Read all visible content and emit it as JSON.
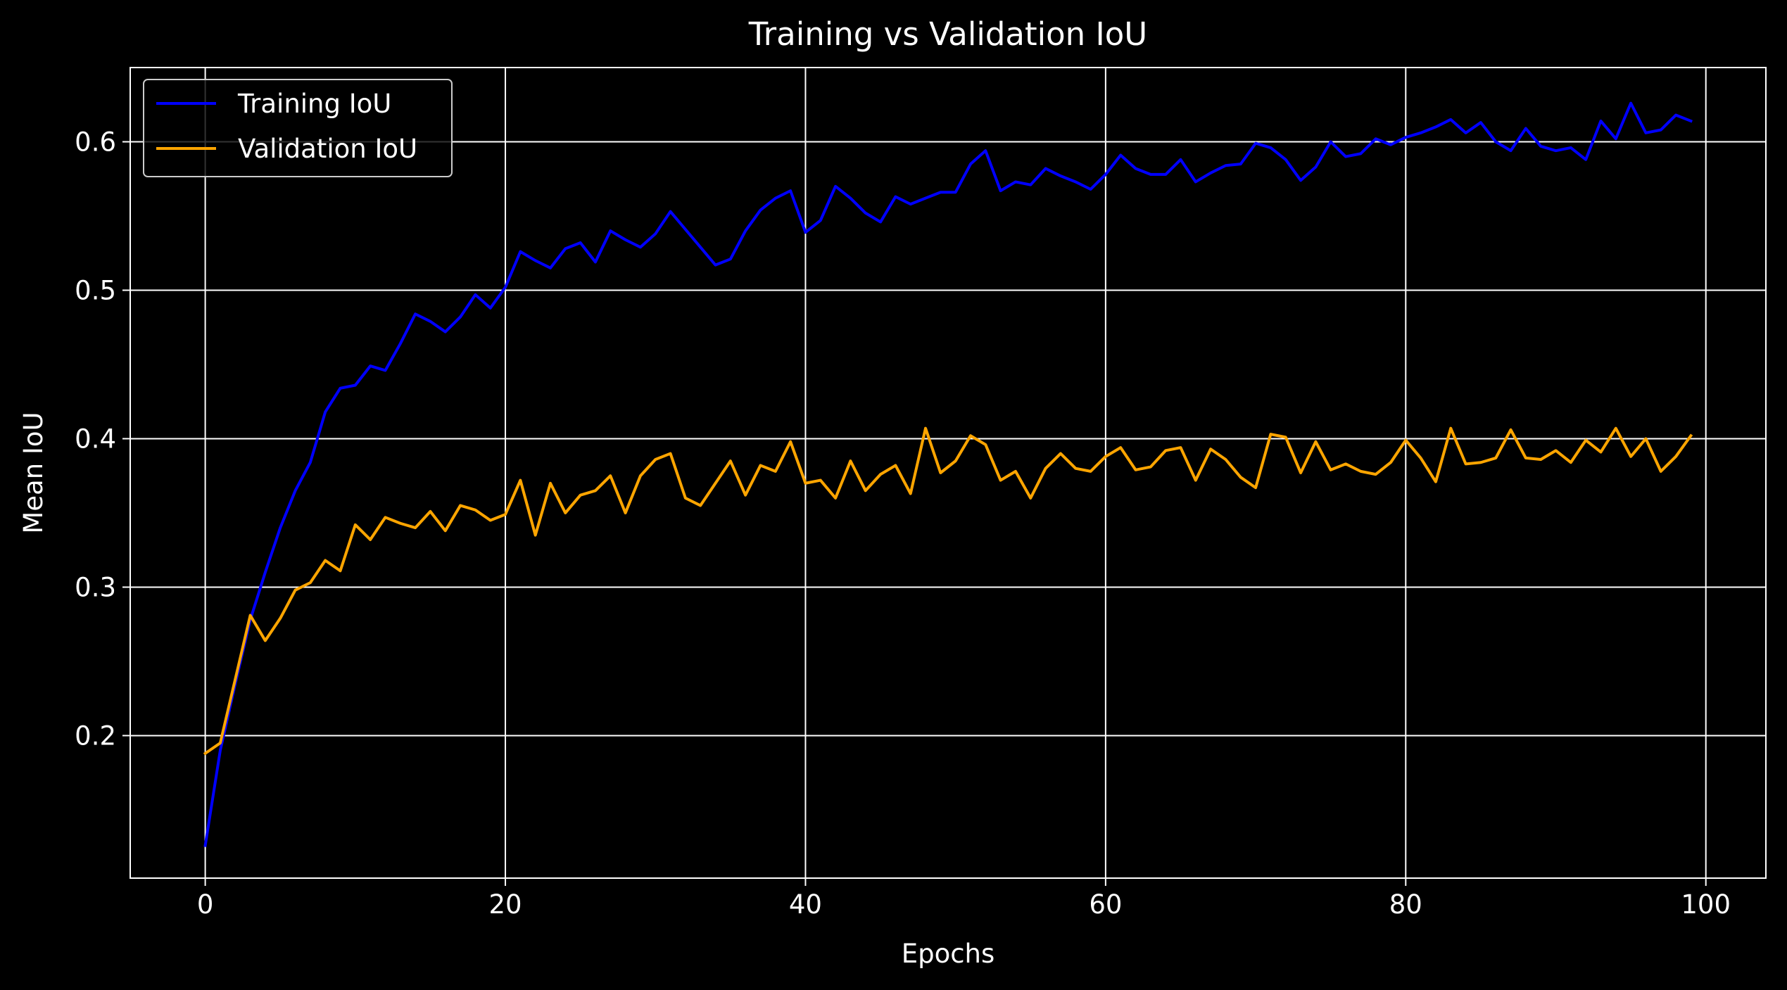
{
  "chart_data": {
    "type": "line",
    "title": "Training vs Validation IoU",
    "xlabel": "Epochs",
    "ylabel": "Mean IoU",
    "xlim": [
      -5,
      104
    ],
    "ylim": [
      0.104,
      0.65
    ],
    "xticks": [
      0,
      20,
      40,
      60,
      80,
      100
    ],
    "yticks": [
      0.2,
      0.3,
      0.4,
      0.5,
      0.6
    ],
    "xtick_labels": [
      "0",
      "20",
      "40",
      "60",
      "80",
      "100"
    ],
    "ytick_labels": [
      "0.2",
      "0.3",
      "0.4",
      "0.5",
      "0.6"
    ],
    "grid": true,
    "legend_position": "top-left",
    "colors": {
      "background": "#000000",
      "foreground": "#ffffff"
    },
    "series": [
      {
        "name": "Training IoU",
        "color": "#0000ff",
        "x": [
          0,
          1,
          2,
          3,
          4,
          5,
          6,
          7,
          8,
          9,
          10,
          11,
          12,
          13,
          14,
          15,
          16,
          17,
          18,
          19,
          20,
          21,
          22,
          23,
          24,
          25,
          26,
          27,
          28,
          29,
          30,
          31,
          32,
          33,
          34,
          35,
          36,
          37,
          38,
          39,
          40,
          41,
          42,
          43,
          44,
          45,
          46,
          47,
          48,
          49,
          50,
          51,
          52,
          53,
          54,
          55,
          56,
          57,
          58,
          59,
          60,
          61,
          62,
          63,
          64,
          65,
          66,
          67,
          68,
          69,
          70,
          71,
          72,
          73,
          74,
          75,
          76,
          77,
          78,
          79,
          80,
          81,
          82,
          83,
          84,
          85,
          86,
          87,
          88,
          89,
          90,
          91,
          92,
          93,
          94,
          95,
          96,
          97,
          98,
          99
        ],
        "values": [
          0.126,
          0.19,
          0.235,
          0.278,
          0.31,
          0.34,
          0.365,
          0.384,
          0.418,
          0.434,
          0.436,
          0.449,
          0.446,
          0.464,
          0.484,
          0.479,
          0.472,
          0.482,
          0.497,
          0.488,
          0.502,
          0.526,
          0.52,
          0.515,
          0.528,
          0.532,
          0.519,
          0.54,
          0.534,
          0.529,
          0.538,
          0.553,
          0.541,
          0.529,
          0.517,
          0.521,
          0.54,
          0.554,
          0.562,
          0.567,
          0.539,
          0.547,
          0.57,
          0.562,
          0.552,
          0.546,
          0.563,
          0.558,
          0.562,
          0.566,
          0.566,
          0.585,
          0.594,
          0.567,
          0.573,
          0.571,
          0.582,
          0.577,
          0.573,
          0.568,
          0.578,
          0.591,
          0.582,
          0.578,
          0.578,
          0.588,
          0.573,
          0.579,
          0.584,
          0.585,
          0.599,
          0.596,
          0.588,
          0.574,
          0.583,
          0.6,
          0.59,
          0.592,
          0.602,
          0.598,
          0.603,
          0.606,
          0.61,
          0.615,
          0.606,
          0.613,
          0.6,
          0.594,
          0.609,
          0.597,
          0.594,
          0.596,
          0.588,
          0.614,
          0.602,
          0.626,
          0.606,
          0.608,
          0.618,
          0.614
        ]
      },
      {
        "name": "Validation IoU",
        "color": "#ffa500",
        "x": [
          0,
          1,
          2,
          3,
          4,
          5,
          6,
          7,
          8,
          9,
          10,
          11,
          12,
          13,
          14,
          15,
          16,
          17,
          18,
          19,
          20,
          21,
          22,
          23,
          24,
          25,
          26,
          27,
          28,
          29,
          30,
          31,
          32,
          33,
          34,
          35,
          36,
          37,
          38,
          39,
          40,
          41,
          42,
          43,
          44,
          45,
          46,
          47,
          48,
          49,
          50,
          51,
          52,
          53,
          54,
          55,
          56,
          57,
          58,
          59,
          60,
          61,
          62,
          63,
          64,
          65,
          66,
          67,
          68,
          69,
          70,
          71,
          72,
          73,
          74,
          75,
          76,
          77,
          78,
          79,
          80,
          81,
          82,
          83,
          84,
          85,
          86,
          87,
          88,
          89,
          90,
          91,
          92,
          93,
          94,
          95,
          96,
          97,
          98,
          99
        ],
        "values": [
          0.188,
          0.195,
          0.238,
          0.281,
          0.264,
          0.279,
          0.298,
          0.303,
          0.318,
          0.311,
          0.342,
          0.332,
          0.347,
          0.343,
          0.34,
          0.351,
          0.338,
          0.355,
          0.352,
          0.345,
          0.349,
          0.372,
          0.335,
          0.37,
          0.35,
          0.362,
          0.365,
          0.375,
          0.35,
          0.375,
          0.386,
          0.39,
          0.36,
          0.355,
          0.37,
          0.385,
          0.362,
          0.382,
          0.378,
          0.398,
          0.37,
          0.372,
          0.36,
          0.385,
          0.365,
          0.376,
          0.382,
          0.363,
          0.407,
          0.377,
          0.385,
          0.402,
          0.396,
          0.372,
          0.378,
          0.36,
          0.38,
          0.39,
          0.38,
          0.378,
          0.388,
          0.394,
          0.379,
          0.381,
          0.392,
          0.394,
          0.372,
          0.393,
          0.386,
          0.374,
          0.367,
          0.403,
          0.401,
          0.377,
          0.398,
          0.379,
          0.383,
          0.378,
          0.376,
          0.384,
          0.399,
          0.387,
          0.371,
          0.407,
          0.383,
          0.384,
          0.387,
          0.406,
          0.387,
          0.386,
          0.392,
          0.384,
          0.399,
          0.391,
          0.407,
          0.388,
          0.4,
          0.378,
          0.388,
          0.402
        ]
      }
    ]
  }
}
